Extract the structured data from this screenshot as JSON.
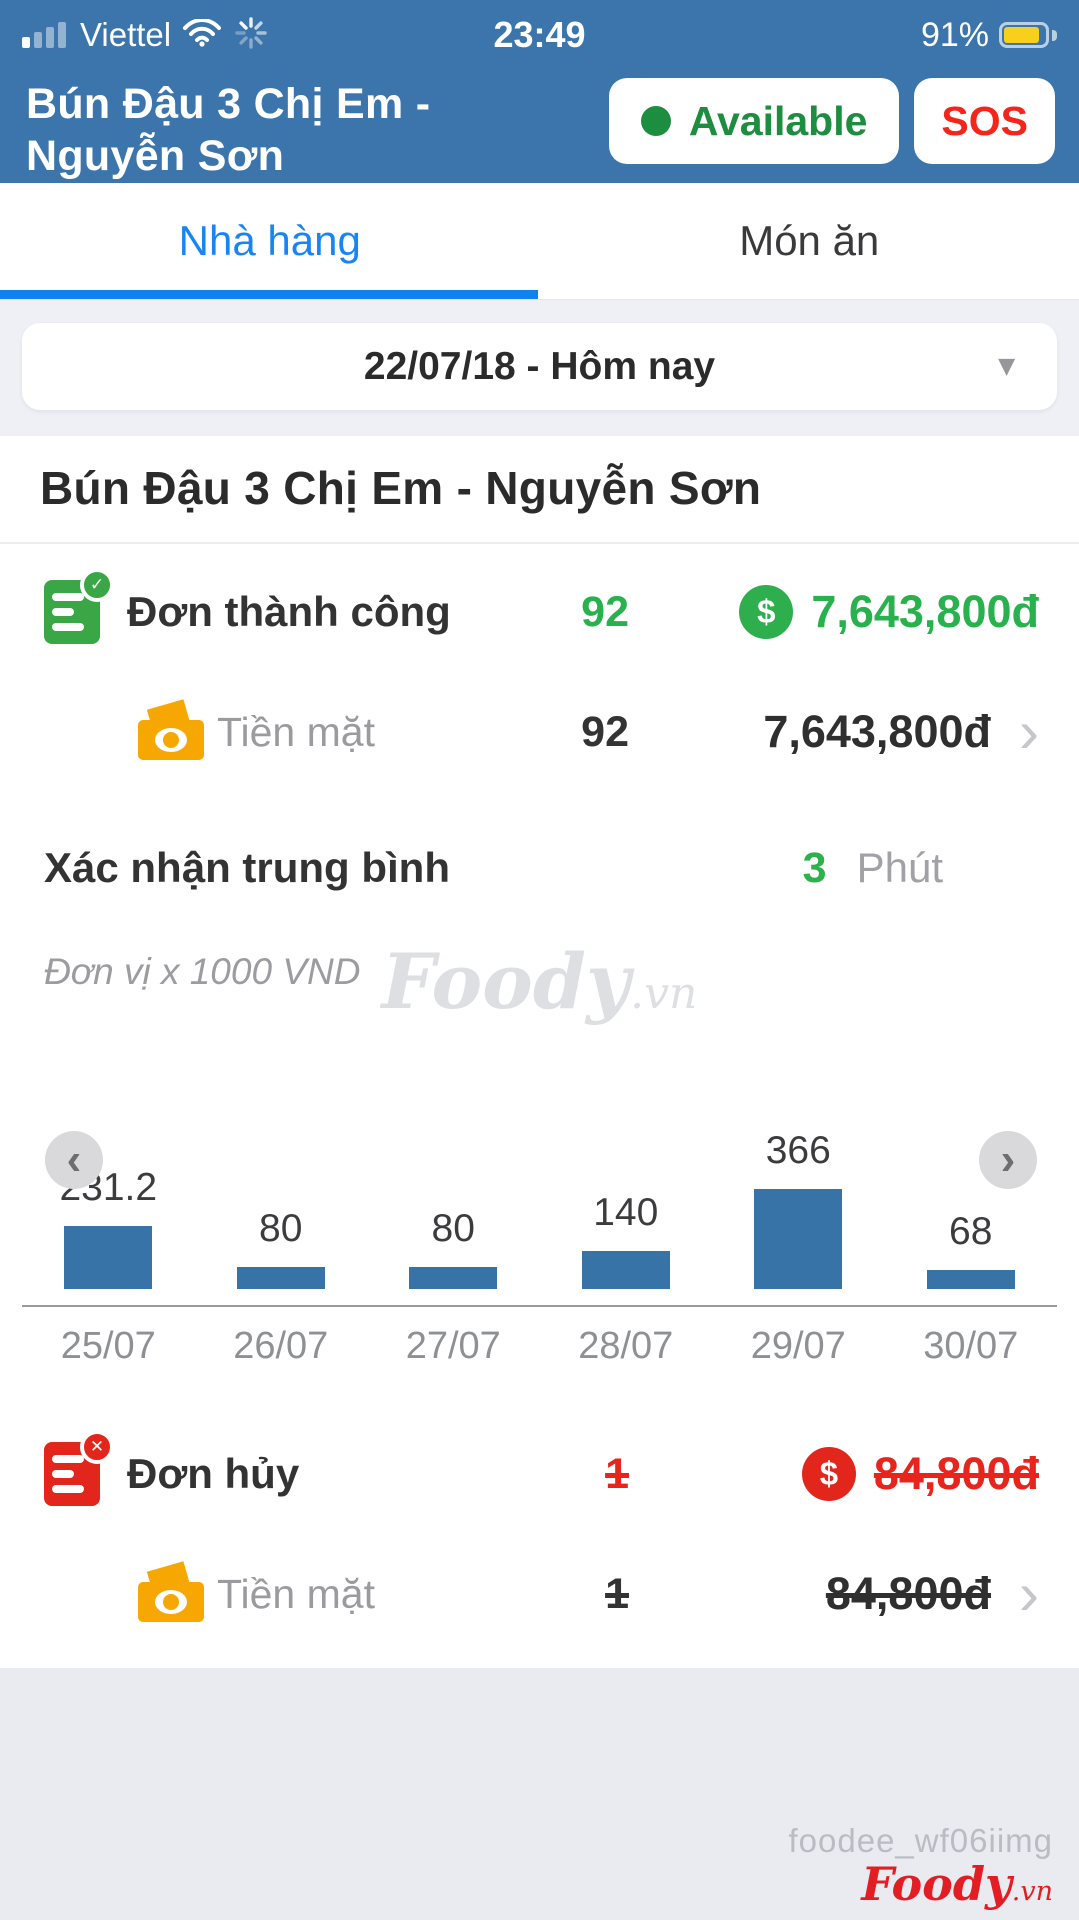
{
  "status_bar": {
    "carrier": "Viettel",
    "time": "23:49",
    "battery_percent": "91%"
  },
  "header": {
    "title": "Bún Đậu 3 Chị Em - Nguyễn Sơn",
    "available": "Available",
    "sos": "SOS"
  },
  "tabs": [
    {
      "label": "Nhà hàng",
      "active": true
    },
    {
      "label": "Món ăn",
      "active": false
    }
  ],
  "date_selector": {
    "value": "22/07/18 - Hôm nay"
  },
  "restaurant": {
    "name": "Bún Đậu 3 Chị Em - Nguyễn Sơn"
  },
  "success": {
    "label": "Đơn thành công",
    "count": "92",
    "amount": "7,643,800đ",
    "cash": {
      "label": "Tiền mặt",
      "count": "92",
      "amount": "7,643,800đ"
    }
  },
  "confirm": {
    "label": "Xác nhận trung bình",
    "value": "3",
    "unit": "Phút"
  },
  "watermark": {
    "brand": "Foody",
    "suffix": ".vn"
  },
  "chart_data": {
    "type": "bar",
    "title": "",
    "unit_note": "Đơn vị x 1000 VND",
    "categories": [
      "25/07",
      "26/07",
      "27/07",
      "28/07",
      "29/07",
      "30/07"
    ],
    "values": [
      231.2,
      80,
      80,
      140,
      366,
      68
    ],
    "xlabel": "",
    "ylabel": "x 1000 VND",
    "ylim": [
      0,
      366
    ],
    "grid": false,
    "legend": "none",
    "bar_color": "#3873a8"
  },
  "cancel": {
    "label": "Đơn hủy",
    "count": "1",
    "amount": "84,800đ",
    "cash": {
      "label": "Tiền mặt",
      "count": "1",
      "amount": "84,800đ"
    }
  },
  "footer": {
    "credit": "foodee_wf06iimg",
    "brand": "Foody",
    "suffix": ".vn"
  },
  "icons": {
    "dollar": "$",
    "check": "✓",
    "cross": "✕",
    "caret_down": "▼",
    "chevron_right": "›",
    "nav_left": "‹",
    "nav_right": "›"
  },
  "colors": {
    "header_blue": "#3c75ac",
    "tab_active_blue": "#1886f2",
    "success_green": "#29b14e",
    "cancel_red": "#e8251d",
    "cash_yellow": "#f7a702",
    "battery_yellow": "#f6d01b"
  }
}
